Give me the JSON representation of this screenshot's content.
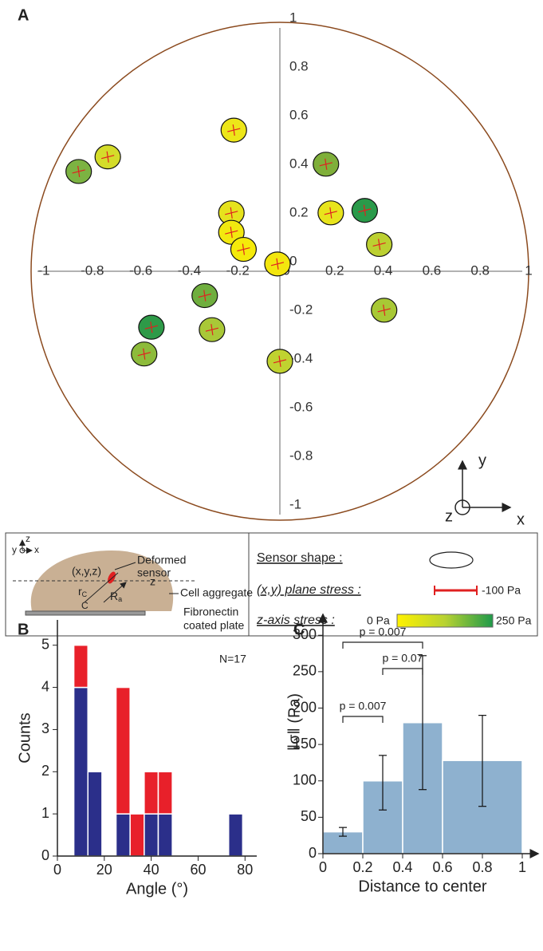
{
  "chart_data": [
    {
      "type": "scatter",
      "panel_label": "A",
      "x": [
        -0.83,
        -0.71,
        -0.19,
        0.19,
        0.21,
        0.35,
        0.41,
        -0.2,
        -0.2,
        -0.15,
        -0.01,
        -0.31,
        -0.28,
        -0.53,
        -0.56,
        0.0,
        0.43
      ],
      "y": [
        0.41,
        0.47,
        0.58,
        0.44,
        0.24,
        0.25,
        0.11,
        0.24,
        0.16,
        0.09,
        0.03,
        -0.1,
        -0.24,
        -0.23,
        -0.34,
        -0.37,
        -0.16
      ],
      "colors": [
        "#7cb342",
        "#d4dc2a",
        "#ede619",
        "#7faf3a",
        "#e8e41c",
        "#2a9a4a",
        "#bcd031",
        "#e6e21d",
        "#f2e80f",
        "#f5ea0a",
        "#f3e60e",
        "#6fae3e",
        "#a9c837",
        "#2e9a48",
        "#8dbb3b",
        "#c0d230",
        "#a8c835"
      ],
      "xlim": [
        -1,
        1
      ],
      "ylim": [
        -1,
        1
      ],
      "xticks": [
        -1,
        -0.8,
        -0.6,
        -0.4,
        -0.2,
        0,
        0.2,
        0.4,
        0.6,
        0.8,
        1
      ],
      "yticks": [
        -1,
        -0.8,
        -0.6,
        -0.4,
        -0.2,
        0,
        0.2,
        0.4,
        0.6,
        0.8,
        1
      ],
      "orientation_labels": {
        "x": "x",
        "y": "y",
        "z": "z"
      }
    },
    {
      "type": "stacked_histogram",
      "panel_label": "B",
      "bins": [
        7,
        13,
        19,
        25,
        31,
        37,
        43,
        49,
        55,
        61,
        67,
        73,
        79
      ],
      "series": [
        {
          "color": "#2b2f8a",
          "values": [
            4,
            2,
            0,
            1,
            0,
            1,
            1,
            0,
            0,
            0,
            0,
            1
          ]
        },
        {
          "color": "#e8202a",
          "values": [
            1,
            0,
            0,
            3,
            1,
            1,
            1,
            0,
            0,
            0,
            0,
            0
          ]
        }
      ],
      "xlim": [
        0,
        85
      ],
      "ylim": [
        0,
        5.6
      ],
      "xticks": [
        0,
        20,
        40,
        60,
        80
      ],
      "yticks": [
        0,
        1,
        2,
        3,
        4,
        5
      ],
      "xlabel": "Angle (°)",
      "ylabel": "Counts",
      "annotation": "N=17"
    },
    {
      "type": "histogram",
      "panel_label": "C",
      "bins": [
        0,
        0.2,
        0.4,
        0.6,
        1
      ],
      "values": [
        30,
        100,
        180,
        128
      ],
      "err_minus": [
        6,
        40,
        92,
        63
      ],
      "err_plus": [
        6,
        35,
        92,
        62
      ],
      "color": "#8eb1cf",
      "xlim": [
        0,
        1
      ],
      "ylim": [
        0,
        320
      ],
      "xticks": [
        0,
        0.2,
        0.4,
        0.6,
        0.8,
        1
      ],
      "yticks": [
        0,
        50,
        100,
        150,
        200,
        250,
        300
      ],
      "xlabel": "Distance to center",
      "ylabel": "‖σ‖ (Pa)",
      "comparisons": [
        {
          "label": "p = 0.007",
          "bars": [
            0,
            2
          ]
        },
        {
          "label": "p = 0.07",
          "bars": [
            1,
            2
          ]
        },
        {
          "label": "p = 0.007",
          "bars": [
            0,
            1
          ]
        }
      ]
    }
  ],
  "legend_box": {
    "schematic": {
      "axis_z": "z",
      "axis_y": "y",
      "axis_x": "x",
      "position": "(x,y,z)",
      "deformed": "Deformed",
      "sensor": "sensor",
      "z_line": "z",
      "r": "r",
      "r_sub": "C",
      "center": "C",
      "R": "R",
      "R_sub": "a",
      "aggregate": "Cell aggregate",
      "fibronectin": "Fibronectin",
      "plate": "coated plate"
    },
    "sensor_shape": "Sensor shape :",
    "plane_stress": "(x,y) plane stress :",
    "plane_stress_value": "-100 Pa",
    "z_stress": "z-axis stress :",
    "z_min": "0 Pa",
    "z_max": "250 Pa"
  }
}
